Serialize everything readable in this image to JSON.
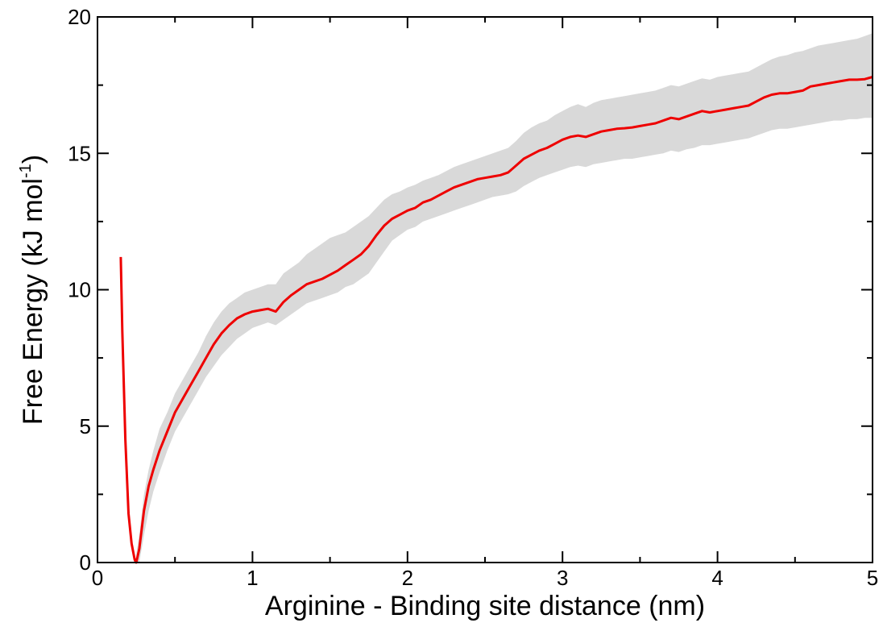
{
  "chart_data": {
    "type": "line",
    "title": "",
    "xlabel": "Arginine - Binding site distance (nm)",
    "ylabel": {
      "main": "Free Energy (kJ mol",
      "superscript": "-1",
      "closing": ")"
    },
    "xlim": [
      0,
      5
    ],
    "ylim": [
      0,
      20
    ],
    "x_ticks": [
      0,
      1,
      2,
      3,
      4,
      5
    ],
    "y_ticks": [
      0,
      5,
      10,
      15,
      20
    ],
    "x_tick_labels": [
      "0",
      "1",
      "2",
      "3",
      "4",
      "5"
    ],
    "y_tick_labels": [
      "0",
      "5",
      "10",
      "15",
      "20"
    ],
    "grid": false,
    "legend": "none",
    "colors": {
      "line": "#ee0000",
      "band": "#d9d9d9"
    },
    "series": [
      {
        "x": [
          0.15,
          0.16,
          0.18,
          0.2,
          0.22,
          0.24,
          0.25,
          0.27,
          0.3,
          0.33,
          0.36,
          0.4,
          0.45,
          0.5,
          0.55,
          0.6,
          0.65,
          0.7,
          0.75,
          0.8,
          0.85,
          0.9,
          0.95,
          1.0,
          1.05,
          1.1,
          1.15,
          1.2,
          1.25,
          1.3,
          1.35,
          1.4,
          1.45,
          1.5,
          1.55,
          1.6,
          1.65,
          1.7,
          1.75,
          1.8,
          1.85,
          1.9,
          1.95,
          2.0,
          2.05,
          2.1,
          2.15,
          2.2,
          2.25,
          2.3,
          2.35,
          2.4,
          2.45,
          2.5,
          2.55,
          2.6,
          2.65,
          2.7,
          2.75,
          2.8,
          2.85,
          2.9,
          2.95,
          3.0,
          3.05,
          3.1,
          3.15,
          3.2,
          3.25,
          3.3,
          3.35,
          3.4,
          3.45,
          3.5,
          3.55,
          3.6,
          3.65,
          3.7,
          3.75,
          3.8,
          3.85,
          3.9,
          3.95,
          4.0,
          4.05,
          4.1,
          4.15,
          4.2,
          4.25,
          4.3,
          4.35,
          4.4,
          4.45,
          4.5,
          4.55,
          4.6,
          4.65,
          4.7,
          4.75,
          4.8,
          4.85,
          4.9,
          4.95,
          5.0
        ],
        "y": [
          11.2,
          8.5,
          4.5,
          1.8,
          0.7,
          0.1,
          0.0,
          0.5,
          1.9,
          2.8,
          3.4,
          4.1,
          4.8,
          5.5,
          6.0,
          6.5,
          7.0,
          7.5,
          8.0,
          8.4,
          8.7,
          8.95,
          9.1,
          9.2,
          9.25,
          9.3,
          9.2,
          9.55,
          9.8,
          10.0,
          10.2,
          10.3,
          10.4,
          10.55,
          10.7,
          10.9,
          11.1,
          11.3,
          11.6,
          12.0,
          12.35,
          12.6,
          12.75,
          12.9,
          13.0,
          13.2,
          13.3,
          13.45,
          13.6,
          13.75,
          13.85,
          13.95,
          14.05,
          14.1,
          14.15,
          14.2,
          14.3,
          14.55,
          14.8,
          14.95,
          15.1,
          15.2,
          15.35,
          15.5,
          15.6,
          15.65,
          15.6,
          15.7,
          15.8,
          15.85,
          15.9,
          15.92,
          15.95,
          16.0,
          16.05,
          16.1,
          16.2,
          16.3,
          16.25,
          16.35,
          16.45,
          16.55,
          16.5,
          16.55,
          16.6,
          16.65,
          16.7,
          16.75,
          16.9,
          17.05,
          17.15,
          17.2,
          17.2,
          17.25,
          17.3,
          17.45,
          17.5,
          17.55,
          17.6,
          17.65,
          17.7,
          17.7,
          17.72,
          17.8
        ],
        "y_lower": [
          null,
          null,
          null,
          null,
          null,
          null,
          0.0,
          0.0,
          1.0,
          1.9,
          2.6,
          3.3,
          4.1,
          4.8,
          5.3,
          5.8,
          6.3,
          6.8,
          7.2,
          7.6,
          7.9,
          8.2,
          8.4,
          8.6,
          8.7,
          8.8,
          8.7,
          8.9,
          9.1,
          9.3,
          9.5,
          9.6,
          9.7,
          9.8,
          9.9,
          10.1,
          10.2,
          10.4,
          10.6,
          11.0,
          11.4,
          11.8,
          12.0,
          12.2,
          12.3,
          12.5,
          12.6,
          12.7,
          12.8,
          12.9,
          13.0,
          13.1,
          13.2,
          13.3,
          13.4,
          13.45,
          13.5,
          13.6,
          13.8,
          13.95,
          14.1,
          14.2,
          14.3,
          14.4,
          14.5,
          14.55,
          14.5,
          14.6,
          14.65,
          14.7,
          14.75,
          14.8,
          14.8,
          14.85,
          14.9,
          14.95,
          15.0,
          15.1,
          15.05,
          15.15,
          15.2,
          15.3,
          15.3,
          15.35,
          15.4,
          15.45,
          15.5,
          15.55,
          15.65,
          15.75,
          15.85,
          15.9,
          15.9,
          15.95,
          16.0,
          16.05,
          16.1,
          16.15,
          16.2,
          16.2,
          16.25,
          16.25,
          16.3,
          16.3
        ],
        "y_upper": [
          null,
          null,
          null,
          null,
          null,
          null,
          0.3,
          1.0,
          2.5,
          3.4,
          4.1,
          4.9,
          5.5,
          6.2,
          6.7,
          7.2,
          7.7,
          8.3,
          8.8,
          9.2,
          9.5,
          9.7,
          9.9,
          10.0,
          10.1,
          10.2,
          10.2,
          10.6,
          10.8,
          11.0,
          11.3,
          11.5,
          11.7,
          11.9,
          12.0,
          12.1,
          12.3,
          12.5,
          12.7,
          13.0,
          13.3,
          13.5,
          13.6,
          13.75,
          13.85,
          14.0,
          14.1,
          14.2,
          14.35,
          14.5,
          14.6,
          14.7,
          14.8,
          14.9,
          15.0,
          15.1,
          15.2,
          15.45,
          15.75,
          15.95,
          16.1,
          16.2,
          16.4,
          16.55,
          16.7,
          16.8,
          16.7,
          16.85,
          16.95,
          17.0,
          17.05,
          17.1,
          17.15,
          17.2,
          17.25,
          17.3,
          17.4,
          17.5,
          17.45,
          17.55,
          17.65,
          17.75,
          17.7,
          17.8,
          17.85,
          17.9,
          17.95,
          18.0,
          18.15,
          18.3,
          18.45,
          18.55,
          18.6,
          18.7,
          18.75,
          18.85,
          18.95,
          19.0,
          19.05,
          19.1,
          19.15,
          19.2,
          19.3,
          19.4
        ]
      }
    ]
  }
}
